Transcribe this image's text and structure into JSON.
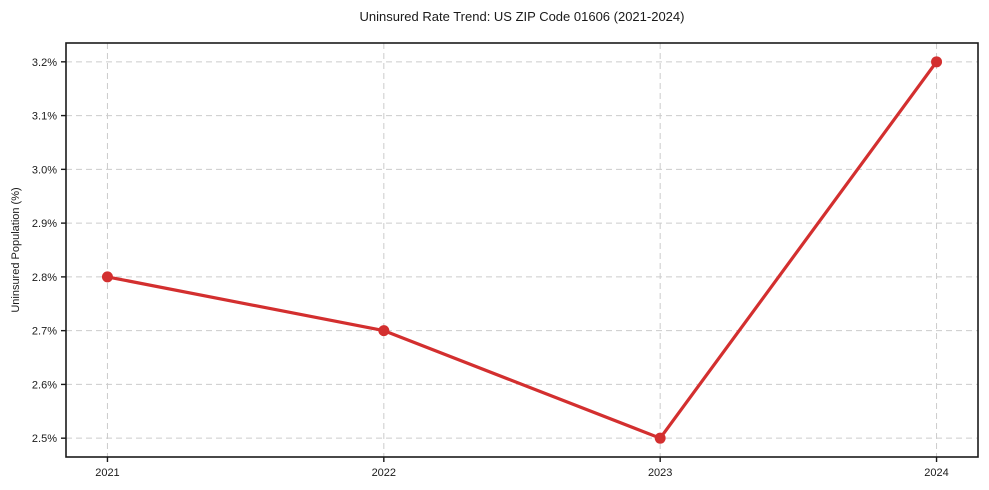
{
  "figure": {
    "background": "#ffffff",
    "text_color": "#1a1a1a"
  },
  "chart_data": {
    "type": "line",
    "title": "Uninsured Rate Trend: US ZIP Code 01606 (2021-2024)",
    "xlabel": "",
    "ylabel": "Uninsured Population (%)",
    "x": [
      2021,
      2022,
      2023,
      2024
    ],
    "x_tick_labels": [
      "2021",
      "2022",
      "2023",
      "2024"
    ],
    "series": [
      {
        "name": "uninsured-rate",
        "values": [
          2.8,
          2.7,
          2.5,
          3.2
        ]
      }
    ],
    "y_ticks": [
      2.5,
      2.6,
      2.7,
      2.8,
      2.9,
      3.0,
      3.1,
      3.2
    ],
    "y_tick_labels": [
      "2.5%",
      "2.6%",
      "2.7%",
      "2.8%",
      "2.9%",
      "3.0%",
      "3.1%",
      "3.2%"
    ],
    "xlim": [
      2020.85,
      2024.15
    ],
    "ylim": [
      2.465,
      3.235
    ],
    "grid": true,
    "grid_style": "dashed",
    "legend": "none",
    "line_color": "#d32f2f",
    "marker_color": "#d32f2f",
    "grid_color": "#cccccc",
    "frame_color": "#1a1a1a",
    "tick_label_color": "#1a1a1a"
  }
}
